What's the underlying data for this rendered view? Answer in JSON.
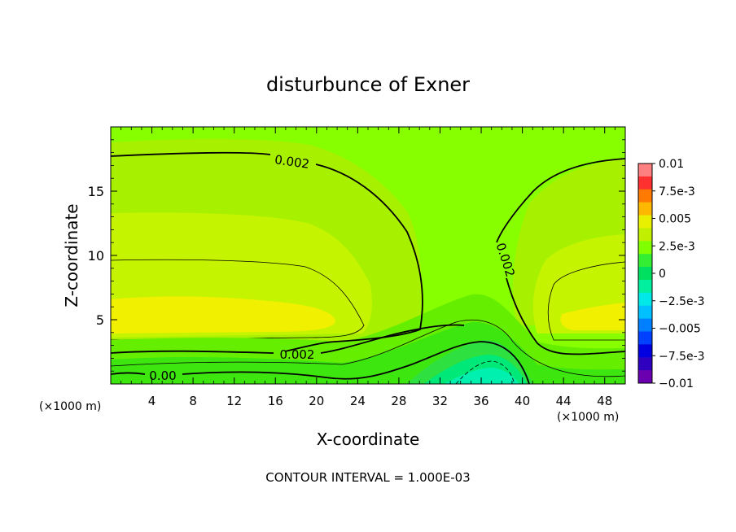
{
  "chart_data": {
    "type": "heatmap",
    "title": "disturbunce of Exner",
    "xlabel": "X-coordinate",
    "ylabel": "Z-coordinate",
    "x_unit_left": "(×1000 m)",
    "x_unit_right": "(×1000 m)",
    "footer": "CONTOUR INTERVAL = 1.000E-03",
    "xlim": [
      0,
      50
    ],
    "ylim": [
      0,
      20
    ],
    "x_ticks": [
      4,
      8,
      12,
      16,
      20,
      24,
      28,
      32,
      36,
      40,
      44,
      48
    ],
    "x_tick_labels": [
      "4",
      "8",
      "12",
      "16",
      "20",
      "24",
      "28",
      "32",
      "36",
      "40",
      "44",
      "48"
    ],
    "y_ticks": [
      5,
      10,
      15
    ],
    "y_tick_labels": [
      "5",
      "10",
      "15"
    ],
    "colorbar": {
      "labels": [
        "0.01",
        "7.5e-3",
        "0.005",
        "2.5e-3",
        "0",
        "−2.5e-3",
        "−0.005",
        "−7.5e-3",
        "−0.01"
      ],
      "colors": [
        "#ff8080",
        "#ff3030",
        "#ff7a00",
        "#ffb800",
        "#e8f000",
        "#c0f000",
        "#80ff00",
        "#33ee33",
        "#00e060",
        "#00f0a0",
        "#00e8e8",
        "#00c0ff",
        "#0080ff",
        "#0040ff",
        "#0000e0",
        "#3000c0",
        "#6a00b0"
      ]
    },
    "contour_labels": [
      {
        "text": "0.002"
      },
      {
        "text": "0.002"
      },
      {
        "text": "0.002"
      },
      {
        "text": "0.00"
      }
    ],
    "regions": {
      "base_color": "#88ff00",
      "upper_band_color": "#a6f000",
      "mid_band_color": "#c4f400",
      "max_band_color": "#f0f000",
      "low_band_color": "#66ee00",
      "surface_band_color": "#3ee610",
      "hill_color_1": "#2ee040",
      "hill_color_2": "#00e878",
      "hill_color_3": "#00f0b0"
    }
  }
}
